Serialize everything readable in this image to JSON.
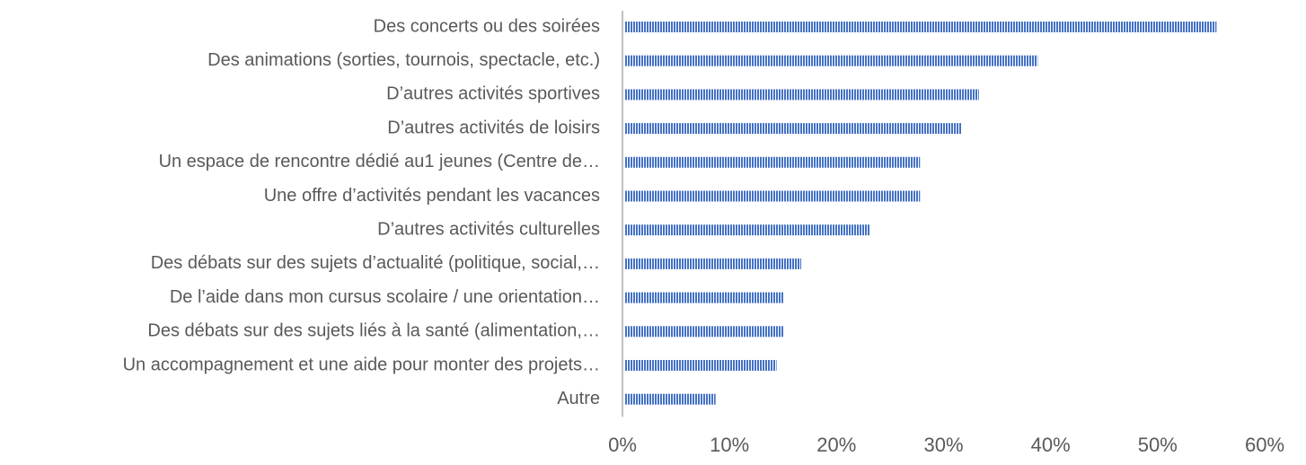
{
  "chart_data": {
    "type": "barh",
    "categories": [
      "Des concerts ou des soirées",
      "Des animations (sorties, tournois, spectacle, etc.)",
      "D’autres activités sportives",
      "D’autres activités de loisirs",
      "Un espace de rencontre dédié au1 jeunes (Centre de…",
      "Une offre d’activités pendant les vacances",
      "D’autres activités culturelles",
      "Des débats sur des sujets d’actualité (politique, social,…",
      "De l’aide dans mon cursus scolaire / une orientation…",
      "Des débats sur des sujets liés à la santé (alimentation,…",
      "Un accompagnement et une aide pour monter des projets…",
      "Autre"
    ],
    "values": [
      55.5,
      38.8,
      33.3,
      31.7,
      27.8,
      27.8,
      23.1,
      16.7,
      15.1,
      15.1,
      14.4,
      8.7
    ],
    "color": "#4472c4",
    "xlim": [
      0,
      60
    ],
    "xticks": [
      {
        "value": 0,
        "label": "0%"
      },
      {
        "value": 10,
        "label": "10%"
      },
      {
        "value": 20,
        "label": "20%"
      },
      {
        "value": 30,
        "label": "30%"
      },
      {
        "value": 40,
        "label": "40%"
      },
      {
        "value": 50,
        "label": "50%"
      },
      {
        "value": 60,
        "label": "60%"
      }
    ]
  }
}
